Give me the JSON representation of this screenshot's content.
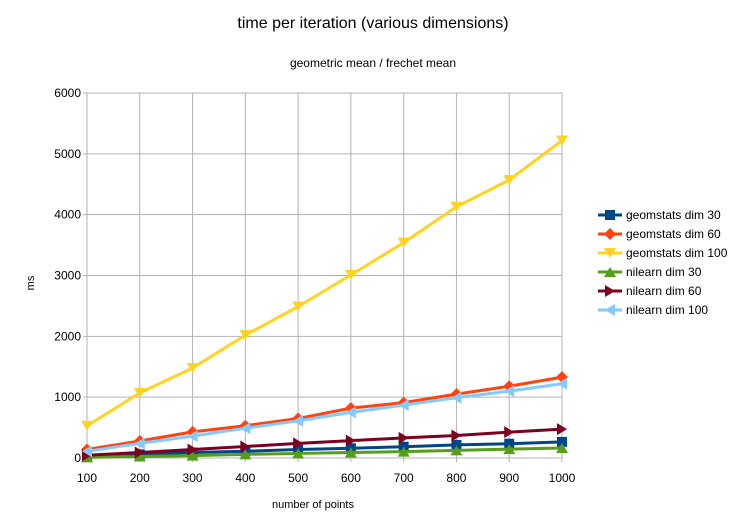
{
  "chart_data": {
    "type": "line",
    "title": "time per iteration (various dimensions)",
    "subtitle": "geometric mean / frechet mean",
    "xlabel": "number of points",
    "ylabel": "ms",
    "x": [
      100,
      200,
      300,
      400,
      500,
      600,
      700,
      800,
      900,
      1000
    ],
    "xlim": [
      100,
      1000
    ],
    "ylim": [
      0,
      6000
    ],
    "yticks": [
      0,
      1000,
      2000,
      3000,
      4000,
      5000,
      6000
    ],
    "grid": "vertical and horizontal",
    "legend_position": "right",
    "series": [
      {
        "name": "geomstats dim 30",
        "color": "#004586",
        "marker": "square",
        "values": [
          25,
          60,
          90,
          110,
          140,
          160,
          185,
          215,
          235,
          265
        ]
      },
      {
        "name": "geomstats dim 60",
        "color": "#ff420e",
        "marker": "diamond",
        "values": [
          140,
          280,
          430,
          530,
          650,
          820,
          910,
          1050,
          1180,
          1330
        ]
      },
      {
        "name": "geomstats dim 100",
        "color": "#ffd320",
        "marker": "triangle-down",
        "values": [
          530,
          1070,
          1480,
          2020,
          2490,
          3010,
          3540,
          4130,
          4570,
          5220
        ]
      },
      {
        "name": "nilearn dim 30",
        "color": "#579d1c",
        "marker": "triangle-up",
        "values": [
          10,
          25,
          40,
          60,
          75,
          90,
          105,
          125,
          145,
          165
        ]
      },
      {
        "name": "nilearn dim 60",
        "color": "#7e0021",
        "marker": "triangle-right",
        "values": [
          45,
          90,
          140,
          190,
          240,
          285,
          330,
          370,
          425,
          475
        ]
      },
      {
        "name": "nilearn dim 100",
        "color": "#83caff",
        "marker": "triangle-left",
        "values": [
          110,
          240,
          360,
          490,
          610,
          750,
          870,
          990,
          1100,
          1220
        ]
      }
    ]
  }
}
